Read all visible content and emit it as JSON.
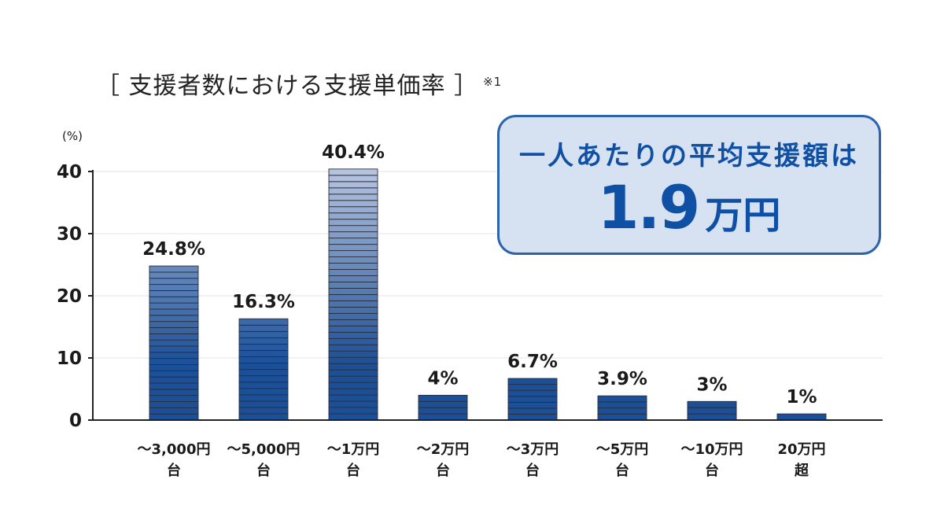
{
  "title": "［ 支援者数における支援単価率 ］",
  "title_note": "※1",
  "summary": {
    "label": "一人あたりの平均支援額は",
    "value": "1.9",
    "unit": "万円"
  },
  "colors": {
    "bar_dark": "#1b4f98",
    "bar_light": "#b9c7e2",
    "text": "#1a1a1a",
    "accent": "#0f4fa4",
    "box_bg": "#d6e2f2",
    "box_border": "#2b63ad"
  },
  "chart_data": {
    "type": "bar",
    "title": "［ 支援者数における支援単価率 ］",
    "ylabel": "(%)",
    "xlabel": "",
    "ylim": [
      0,
      40
    ],
    "yticks": [
      0,
      10,
      20,
      30,
      40
    ],
    "grid": true,
    "categories": [
      [
        "～3,000円",
        "台"
      ],
      [
        "～5,000円",
        "台"
      ],
      [
        "～1万円",
        "台"
      ],
      [
        "～2万円",
        "台"
      ],
      [
        "～3万円",
        "台"
      ],
      [
        "～5万円",
        "台"
      ],
      [
        "～10万円",
        "台"
      ],
      [
        "20万円",
        "超"
      ]
    ],
    "values": [
      24.8,
      16.3,
      40.4,
      4,
      6.7,
      3.9,
      3,
      1
    ],
    "value_labels": [
      "24.8%",
      "16.3%",
      "40.4%",
      "4%",
      "6.7%",
      "3.9%",
      "3%",
      "1%"
    ]
  }
}
